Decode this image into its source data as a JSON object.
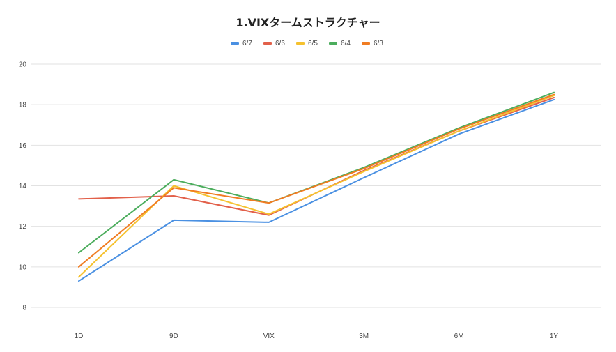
{
  "chart_data": {
    "type": "line",
    "title": "1.VIXタームストラクチャー",
    "categories": [
      "1D",
      "9D",
      "VIX",
      "3M",
      "6M",
      "1Y"
    ],
    "ylim": [
      8,
      20
    ],
    "yticks": [
      8,
      10,
      12,
      14,
      16,
      18,
      20
    ],
    "grid": true,
    "legend": "top",
    "series": [
      {
        "name": "6/7",
        "color": "#4a90e2",
        "values": [
          9.3,
          12.3,
          12.2,
          14.4,
          16.55,
          18.25
        ]
      },
      {
        "name": "6/6",
        "color": "#e2604a",
        "values": [
          13.35,
          13.5,
          12.55,
          14.75,
          16.7,
          18.35
        ]
      },
      {
        "name": "6/5",
        "color": "#f5c12e",
        "values": [
          9.5,
          14.0,
          12.6,
          14.7,
          16.7,
          18.45
        ]
      },
      {
        "name": "6/4",
        "color": "#4cad5d",
        "values": [
          10.7,
          14.3,
          13.15,
          14.9,
          16.85,
          18.6
        ]
      },
      {
        "name": "6/3",
        "color": "#f07c22",
        "values": [
          10.0,
          13.9,
          13.15,
          14.85,
          16.8,
          18.5
        ]
      }
    ]
  }
}
